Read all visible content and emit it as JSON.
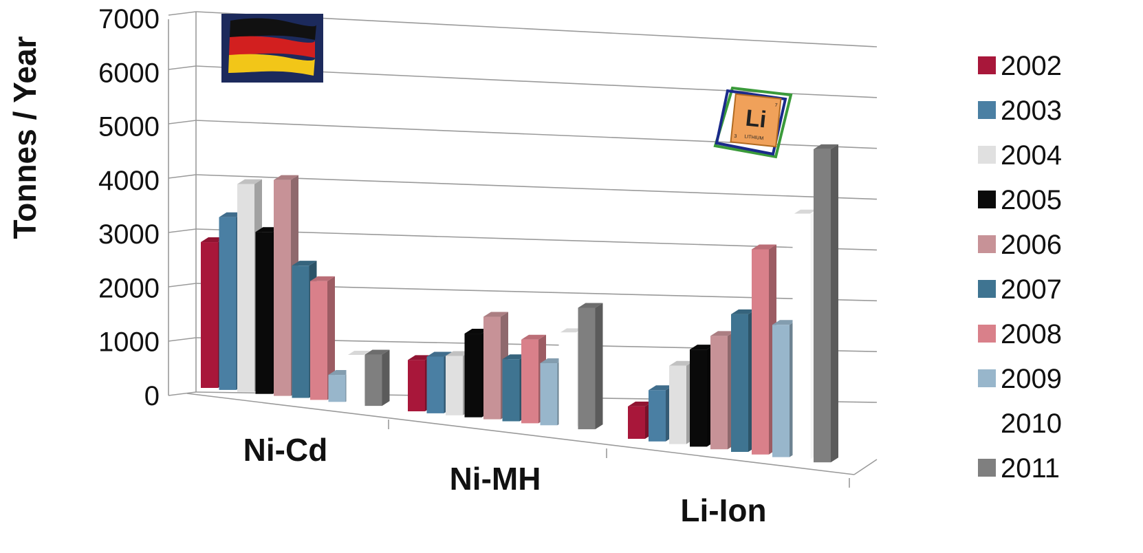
{
  "chart_data": {
    "type": "bar",
    "title": "",
    "ylabel": "Tonnes / Year",
    "xlabel": "",
    "ylim": [
      0,
      7000
    ],
    "yticks": [
      "0",
      "1000",
      "2000",
      "3000",
      "4000",
      "5000",
      "6000",
      "7000"
    ],
    "categories": [
      "Ni-Cd",
      "Ni-MH",
      "Li-Ion"
    ],
    "legend_position": "right",
    "grid": true,
    "style": "3d-clustered-column",
    "series": [
      {
        "name": "2002",
        "color": "#A8173A",
        "values": [
          2700,
          950,
          600
        ]
      },
      {
        "name": "2003",
        "color": "#4A7FA3",
        "values": [
          3200,
          1050,
          950
        ]
      },
      {
        "name": "2004",
        "color": "#E0E0E0",
        "values": [
          3850,
          1100,
          1450
        ]
      },
      {
        "name": "2005",
        "color": "#0A0A0A",
        "values": [
          3000,
          1550,
          1800
        ]
      },
      {
        "name": "2006",
        "color": "#C79297",
        "values": [
          4000,
          1900,
          2100
        ]
      },
      {
        "name": "2007",
        "color": "#3F7491",
        "values": [
          2450,
          1150,
          2550
        ]
      },
      {
        "name": "2008",
        "color": "#D9808A",
        "values": [
          2200,
          1550,
          3800
        ]
      },
      {
        "name": "2009",
        "color": "#98B6CB",
        "values": [
          500,
          1150,
          2450
        ]
      },
      {
        "name": "2010",
        "color": "#FFFFFF",
        "values": [
          900,
          1750,
          4550
        ]
      },
      {
        "name": "2011",
        "color": "#7F7F7F",
        "values": [
          950,
          2250,
          5800
        ]
      }
    ]
  },
  "images": {
    "flag": "germany-flag",
    "element_tile": {
      "symbol": "Li",
      "name": "LITHIUM",
      "atomic_number": "3",
      "mass": "7"
    }
  }
}
